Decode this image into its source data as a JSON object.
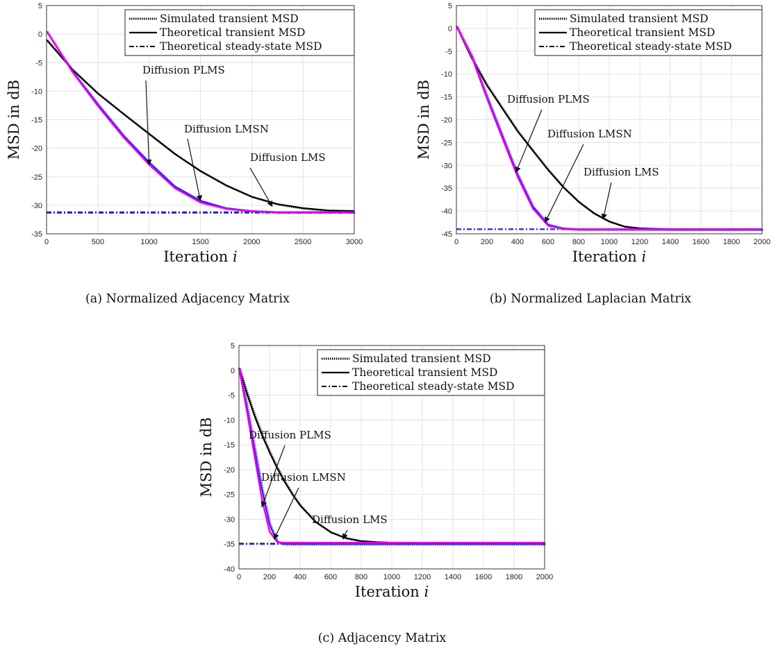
{
  "chart_data": [
    {
      "type": "line",
      "caption": "(a) Normalized Adjacency Matrix",
      "xlabel": "Iteration i",
      "ylabel": "MSD in dB",
      "xlim": [
        0,
        3000
      ],
      "ylim": [
        -35,
        5
      ],
      "xticks": [
        "0",
        "500",
        "1000",
        "1500",
        "2000",
        "2500",
        "3000"
      ],
      "yticks": [
        "5",
        "0",
        "-5",
        "-10",
        "-15",
        "-20",
        "-25",
        "-30",
        "-35"
      ],
      "grid": true,
      "legend": {
        "placement": "top-right",
        "entries": [
          "Simulated transient MSD",
          "Theoretical transient MSD",
          "Theoretical steady-state MSD"
        ]
      },
      "series": [
        {
          "name": "Diffusion LMS",
          "color": "#000000",
          "x": [
            0,
            250,
            500,
            750,
            1000,
            1250,
            1500,
            1750,
            2000,
            2250,
            2500,
            2750,
            3000
          ],
          "y": [
            -1,
            -6.2,
            -10.4,
            -14,
            -17.5,
            -21,
            -24,
            -26.5,
            -28.5,
            -29.8,
            -30.5,
            -30.9,
            -31
          ]
        },
        {
          "name": "Diffusion LMSN",
          "color": "#1f1fff",
          "x": [
            0,
            250,
            500,
            750,
            1000,
            1250,
            1500,
            1750,
            2000,
            2250,
            2500,
            2750,
            3000
          ],
          "y": [
            0.5,
            -6.5,
            -12.3,
            -17.8,
            -22.5,
            -26.7,
            -29.2,
            -30.5,
            -31,
            -31.2,
            -31.2,
            -31.2,
            -31.2
          ]
        },
        {
          "name": "Diffusion PLMS",
          "color": "#e800e8",
          "x": [
            0,
            250,
            500,
            750,
            1000,
            1250,
            1500,
            1750,
            2000,
            2250,
            2500,
            2750,
            3000
          ],
          "y": [
            0.5,
            -6.6,
            -12.6,
            -18.1,
            -22.9,
            -27,
            -29.5,
            -30.6,
            -31,
            -31.2,
            -31.2,
            -31.2,
            -31.2
          ]
        }
      ],
      "steady_state": [
        {
          "color": "#000000",
          "y": -31.3
        },
        {
          "color": "#1f1fff",
          "y": -31.2
        }
      ],
      "annotations": [
        {
          "text": "Diffusion PLMS",
          "x": 1000,
          "y": -22.9
        },
        {
          "text": "Diffusion LMSN",
          "x": 1500,
          "y": -29.2
        },
        {
          "text": "Diffusion LMS",
          "x": 2200,
          "y": -30.2
        }
      ]
    },
    {
      "type": "line",
      "caption": "(b) Normalized Laplacian Matrix",
      "xlabel": "Iteration i",
      "ylabel": "MSD in dB",
      "xlim": [
        0,
        2000
      ],
      "ylim": [
        -45,
        5
      ],
      "xticks": [
        "0",
        "200",
        "400",
        "600",
        "800",
        "1000",
        "1200",
        "1400",
        "1600",
        "1800",
        "2000"
      ],
      "yticks": [
        "5",
        "0",
        "-5",
        "-10",
        "-15",
        "-20",
        "-25",
        "-30",
        "-35",
        "-40",
        "-45"
      ],
      "grid": true,
      "legend": {
        "placement": "top-right",
        "entries": [
          "Simulated transient MSD",
          "Theoretical transient MSD",
          "Theoretical steady-state MSD"
        ]
      },
      "series": [
        {
          "name": "Diffusion LMS",
          "color": "#000000",
          "x": [
            0,
            100,
            200,
            300,
            400,
            500,
            600,
            700,
            800,
            900,
            1000,
            1100,
            1200,
            1400,
            1600,
            1800,
            2000
          ],
          "y": [
            0.5,
            -6.5,
            -12.5,
            -17.5,
            -22.5,
            -26.8,
            -31,
            -34.8,
            -38,
            -40.5,
            -42.3,
            -43.4,
            -43.8,
            -44,
            -44,
            -44,
            -44
          ]
        },
        {
          "name": "Diffusion LMSN",
          "color": "#1f1fff",
          "x": [
            0,
            100,
            200,
            300,
            400,
            500,
            600,
            700,
            800,
            1000,
            1200,
            1400,
            1600,
            1800,
            2000
          ],
          "y": [
            0.5,
            -6,
            -15,
            -23.5,
            -32,
            -39,
            -43,
            -43.8,
            -44,
            -44,
            -44,
            -44,
            -44,
            -44,
            -44
          ]
        },
        {
          "name": "Diffusion PLMS",
          "color": "#e800e8",
          "x": [
            0,
            100,
            200,
            300,
            400,
            500,
            600,
            700,
            800,
            1000,
            1200,
            1400,
            1600,
            1800,
            2000
          ],
          "y": [
            0.5,
            -6.2,
            -15.4,
            -24,
            -32.5,
            -39.5,
            -43.2,
            -43.9,
            -44,
            -44,
            -44,
            -44,
            -44,
            -44,
            -44
          ]
        }
      ],
      "steady_state": [
        {
          "color": "#000000",
          "y": -44
        },
        {
          "color": "#1f1fff",
          "y": -44
        }
      ],
      "annotations": [
        {
          "text": "Diffusion PLMS",
          "x": 390,
          "y": -31.5
        },
        {
          "text": "Diffusion LMSN",
          "x": 580,
          "y": -42.5
        },
        {
          "text": "Diffusion LMS",
          "x": 960,
          "y": -41.8
        }
      ]
    },
    {
      "type": "line",
      "caption": "(c) Adjacency Matrix",
      "xlabel": "Iteration i",
      "ylabel": "MSD in dB",
      "xlim": [
        0,
        2000
      ],
      "ylim": [
        -40,
        5
      ],
      "xticks": [
        "0",
        "200",
        "400",
        "600",
        "800",
        "1000",
        "1200",
        "1400",
        "1600",
        "1800",
        "2000"
      ],
      "yticks": [
        "5",
        "0",
        "-5",
        "-10",
        "-15",
        "-20",
        "-25",
        "-30",
        "-35",
        "-40"
      ],
      "grid": true,
      "legend": {
        "placement": "top-right",
        "entries": [
          "Simulated transient MSD",
          "Theoretical transient MSD",
          "Theoretical steady-state MSD"
        ]
      },
      "series": [
        {
          "name": "Diffusion LMS",
          "color": "#000000",
          "x": [
            0,
            50,
            100,
            150,
            200,
            250,
            300,
            350,
            400,
            500,
            600,
            700,
            800,
            900,
            1000,
            1200,
            1400,
            1600,
            1800,
            2000
          ],
          "y": [
            0.5,
            -4.5,
            -9,
            -13,
            -16.5,
            -19.7,
            -22.5,
            -25,
            -27.2,
            -30.5,
            -32.6,
            -33.8,
            -34.4,
            -34.6,
            -34.7,
            -34.8,
            -34.8,
            -34.8,
            -34.8,
            -34.8
          ]
        },
        {
          "name": "Diffusion LMSN",
          "color": "#1f1fff",
          "x": [
            0,
            50,
            100,
            150,
            200,
            250,
            300,
            400,
            600,
            800,
            1000,
            1200,
            1400,
            1600,
            1800,
            2000
          ],
          "y": [
            0.5,
            -7,
            -15.5,
            -24,
            -31,
            -34.5,
            -35,
            -35,
            -35,
            -35,
            -35,
            -35,
            -35,
            -35,
            -35,
            -35
          ]
        },
        {
          "name": "Diffusion PLMS",
          "color": "#e800e8",
          "x": [
            0,
            50,
            100,
            150,
            200,
            250,
            300,
            400,
            600,
            800,
            1000,
            1200,
            1400,
            1600,
            1800,
            2000
          ],
          "y": [
            0.5,
            -8,
            -17,
            -26,
            -32.5,
            -34.6,
            -34.7,
            -34.7,
            -34.7,
            -34.7,
            -34.7,
            -34.7,
            -34.7,
            -34.7,
            -34.7,
            -34.7
          ]
        }
      ],
      "steady_state": [
        {
          "color": "#000000",
          "y": -34.9
        },
        {
          "color": "#1f1fff",
          "y": -35
        }
      ],
      "annotations": [
        {
          "text": "Diffusion PLMS",
          "x": 150,
          "y": -27.5
        },
        {
          "text": "Diffusion LMSN",
          "x": 230,
          "y": -34
        },
        {
          "text": "Diffusion LMS",
          "x": 680,
          "y": -34
        }
      ]
    }
  ]
}
